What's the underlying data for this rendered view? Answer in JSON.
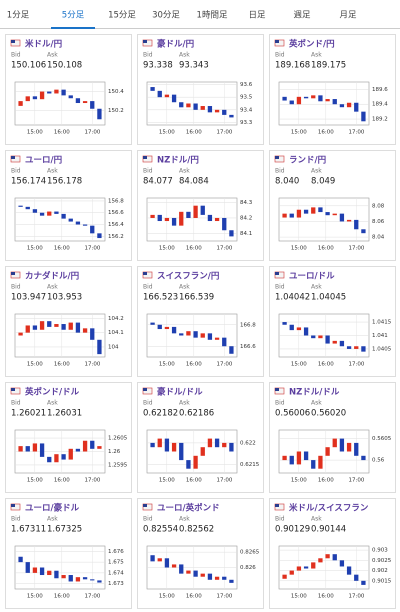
{
  "tabs": [
    "1分足",
    "5分足",
    "15分足",
    "30分足",
    "1時間足",
    "日足",
    "週足",
    "月足"
  ],
  "active_tab": 1,
  "bid_label": "Bid",
  "ask_label": "Ask",
  "time_labels": [
    "15:00",
    "16:00",
    "17:00"
  ],
  "cards": [
    {
      "title": "米ドル/円",
      "bid": "150.106",
      "ask": "150.108",
      "ylim": [
        150.05,
        150.5
      ],
      "yticks": [
        150.2,
        150.4
      ],
      "candles": [
        [
          150.25,
          150.3
        ],
        [
          150.3,
          150.35
        ],
        [
          150.35,
          150.32
        ],
        [
          150.32,
          150.4
        ],
        [
          150.4,
          150.38
        ],
        [
          150.38,
          150.42
        ],
        [
          150.42,
          150.36
        ],
        [
          150.36,
          150.33
        ],
        [
          150.33,
          150.28
        ],
        [
          150.28,
          150.3
        ],
        [
          150.3,
          150.22
        ],
        [
          150.22,
          150.11
        ]
      ]
    },
    {
      "title": "豪ドル/円",
      "bid": "93.338",
      "ask": "93.343",
      "ylim": [
        93.28,
        93.62
      ],
      "yticks": [
        93.3,
        93.4,
        93.5,
        93.6
      ],
      "candles": [
        [
          93.58,
          93.55
        ],
        [
          93.55,
          93.5
        ],
        [
          93.5,
          93.52
        ],
        [
          93.52,
          93.46
        ],
        [
          93.46,
          93.42
        ],
        [
          93.42,
          93.45
        ],
        [
          93.45,
          93.4
        ],
        [
          93.4,
          93.43
        ],
        [
          93.43,
          93.38
        ],
        [
          93.38,
          93.4
        ],
        [
          93.4,
          93.36
        ],
        [
          93.36,
          93.34
        ]
      ]
    },
    {
      "title": "英ポンド/円",
      "bid": "189.168",
      "ask": "189.175",
      "ylim": [
        189.12,
        189.7
      ],
      "yticks": [
        189.2,
        189.4,
        189.6
      ],
      "candles": [
        [
          189.5,
          189.45
        ],
        [
          189.45,
          189.4
        ],
        [
          189.4,
          189.5
        ],
        [
          189.5,
          189.48
        ],
        [
          189.48,
          189.52
        ],
        [
          189.52,
          189.44
        ],
        [
          189.44,
          189.47
        ],
        [
          189.47,
          189.4
        ],
        [
          189.4,
          189.36
        ],
        [
          189.36,
          189.42
        ],
        [
          189.42,
          189.3
        ],
        [
          189.3,
          189.17
        ]
      ]
    },
    {
      "title": "ユーロ/円",
      "bid": "156.174",
      "ask": "156.178",
      "ylim": [
        156.12,
        156.85
      ],
      "yticks": [
        156.2,
        156.4,
        156.6,
        156.8
      ],
      "candles": [
        [
          156.72,
          156.7
        ],
        [
          156.7,
          156.66
        ],
        [
          156.66,
          156.6
        ],
        [
          156.6,
          156.55
        ],
        [
          156.55,
          156.62
        ],
        [
          156.62,
          156.58
        ],
        [
          156.58,
          156.5
        ],
        [
          156.5,
          156.45
        ],
        [
          156.45,
          156.4
        ],
        [
          156.4,
          156.38
        ],
        [
          156.38,
          156.25
        ],
        [
          156.25,
          156.17
        ]
      ]
    },
    {
      "title": "NZドル/円",
      "bid": "84.077",
      "ask": "84.084",
      "ylim": [
        84.05,
        84.33
      ],
      "yticks": [
        84.1,
        84.2,
        84.3
      ],
      "candles": [
        [
          84.2,
          84.22
        ],
        [
          84.22,
          84.18
        ],
        [
          84.18,
          84.2
        ],
        [
          84.2,
          84.15
        ],
        [
          84.15,
          84.24
        ],
        [
          84.24,
          84.2
        ],
        [
          84.2,
          84.28
        ],
        [
          84.28,
          84.22
        ],
        [
          84.22,
          84.18
        ],
        [
          84.18,
          84.2
        ],
        [
          84.2,
          84.12
        ],
        [
          84.12,
          84.08
        ]
      ]
    },
    {
      "title": "ランド/円",
      "bid": "8.040",
      "ask": "8.049",
      "ylim": [
        8.035,
        8.09
      ],
      "yticks": [
        8.04,
        8.06,
        8.08
      ],
      "candles": [
        [
          8.065,
          8.07
        ],
        [
          8.07,
          8.065
        ],
        [
          8.065,
          8.075
        ],
        [
          8.075,
          8.07
        ],
        [
          8.07,
          8.078
        ],
        [
          8.078,
          8.072
        ],
        [
          8.072,
          8.068
        ],
        [
          8.068,
          8.07
        ],
        [
          8.07,
          8.06
        ],
        [
          8.06,
          8.062
        ],
        [
          8.062,
          8.05
        ],
        [
          8.05,
          8.045
        ]
      ]
    },
    {
      "title": "カナダドル/円",
      "bid": "103.947",
      "ask": "103.953",
      "ylim": [
        103.93,
        104.23
      ],
      "yticks": [
        104,
        104.1,
        104.2
      ],
      "candles": [
        [
          104.08,
          104.1
        ],
        [
          104.1,
          104.15
        ],
        [
          104.15,
          104.12
        ],
        [
          104.12,
          104.18
        ],
        [
          104.18,
          104.14
        ],
        [
          104.14,
          104.16
        ],
        [
          104.16,
          104.12
        ],
        [
          104.12,
          104.17
        ],
        [
          104.17,
          104.1
        ],
        [
          104.1,
          104.13
        ],
        [
          104.13,
          104.05
        ],
        [
          104.05,
          103.95
        ]
      ]
    },
    {
      "title": "スイスフラン/円",
      "bid": "166.523",
      "ask": "166.539",
      "ylim": [
        166.5,
        166.9
      ],
      "yticks": [
        166.6,
        166.8
      ],
      "candles": [
        [
          166.82,
          166.8
        ],
        [
          166.8,
          166.76
        ],
        [
          166.76,
          166.78
        ],
        [
          166.78,
          166.72
        ],
        [
          166.72,
          166.7
        ],
        [
          166.7,
          166.74
        ],
        [
          166.74,
          166.68
        ],
        [
          166.68,
          166.72
        ],
        [
          166.72,
          166.66
        ],
        [
          166.66,
          166.68
        ],
        [
          166.68,
          166.6
        ],
        [
          166.6,
          166.53
        ]
      ]
    },
    {
      "title": "ユーロ/ドル",
      "bid": "1.04042",
      "ask": "1.04045",
      "ylim": [
        1.0402,
        1.0418
      ],
      "yticks": [
        1.0405,
        1.041,
        1.0415
      ],
      "candles": [
        [
          1.0415,
          1.0414
        ],
        [
          1.0414,
          1.0412
        ],
        [
          1.0412,
          1.0413
        ],
        [
          1.0413,
          1.041
        ],
        [
          1.041,
          1.0409
        ],
        [
          1.0409,
          1.041
        ],
        [
          1.041,
          1.0407
        ],
        [
          1.0407,
          1.0408
        ],
        [
          1.0408,
          1.0406
        ],
        [
          1.0406,
          1.0405
        ],
        [
          1.0405,
          1.0406
        ],
        [
          1.0406,
          1.0404
        ]
      ]
    },
    {
      "title": "英ポンド/ドル",
      "bid": "1.26021",
      "ask": "1.26031",
      "ylim": [
        1.2592,
        1.2608
      ],
      "yticks": [
        1.2595,
        1.26,
        1.2605
      ],
      "candles": [
        [
          1.26,
          1.2602
        ],
        [
          1.2602,
          1.26
        ],
        [
          1.26,
          1.2603
        ],
        [
          1.2603,
          1.2598
        ],
        [
          1.2598,
          1.2596
        ],
        [
          1.2596,
          1.2599
        ],
        [
          1.2599,
          1.2597
        ],
        [
          1.2597,
          1.2601
        ],
        [
          1.2601,
          1.26
        ],
        [
          1.26,
          1.2604
        ],
        [
          1.2604,
          1.2601
        ],
        [
          1.2601,
          1.2602
        ]
      ]
    },
    {
      "title": "豪ドル/ドル",
      "bid": "0.62182",
      "ask": "0.62186",
      "ylim": [
        0.6213,
        0.6223
      ],
      "yticks": [
        0.6215,
        0.622
      ],
      "candles": [
        [
          0.622,
          0.6219
        ],
        [
          0.6219,
          0.6221
        ],
        [
          0.6221,
          0.6218
        ],
        [
          0.6218,
          0.622
        ],
        [
          0.622,
          0.6216
        ],
        [
          0.6216,
          0.6214
        ],
        [
          0.6214,
          0.6217
        ],
        [
          0.6217,
          0.6219
        ],
        [
          0.6219,
          0.6221
        ],
        [
          0.6221,
          0.6219
        ],
        [
          0.6219,
          0.622
        ],
        [
          0.622,
          0.6218
        ]
      ]
    },
    {
      "title": "NZドル/ドル",
      "bid": "0.56006",
      "ask": "0.56020",
      "ylim": [
        0.5597,
        0.5607
      ],
      "yticks": [
        0.56,
        0.5605
      ],
      "candles": [
        [
          0.56,
          0.5601
        ],
        [
          0.5601,
          0.5599
        ],
        [
          0.5599,
          0.5602
        ],
        [
          0.5602,
          0.56
        ],
        [
          0.56,
          0.5598
        ],
        [
          0.5598,
          0.5601
        ],
        [
          0.5601,
          0.5603
        ],
        [
          0.5603,
          0.5605
        ],
        [
          0.5605,
          0.5602
        ],
        [
          0.5602,
          0.5604
        ],
        [
          0.5604,
          0.5601
        ],
        [
          0.5601,
          0.56
        ]
      ]
    },
    {
      "title": "ユーロ/豪ドル",
      "bid": "1.67311",
      "ask": "1.67325",
      "ylim": [
        1.6725,
        1.6765
      ],
      "yticks": [
        1.673,
        1.674,
        1.675,
        1.676
      ],
      "candles": [
        [
          1.6755,
          1.675
        ],
        [
          1.675,
          1.674
        ],
        [
          1.674,
          1.6745
        ],
        [
          1.6745,
          1.6738
        ],
        [
          1.6738,
          1.6742
        ],
        [
          1.6742,
          1.6735
        ],
        [
          1.6735,
          1.6738
        ],
        [
          1.6738,
          1.6732
        ],
        [
          1.6732,
          1.6736
        ],
        [
          1.6736,
          1.6734
        ],
        [
          1.6734,
          1.6733
        ],
        [
          1.6733,
          1.6731
        ]
      ]
    },
    {
      "title": "ユーロ/英ポンド",
      "bid": "0.82554",
      "ask": "0.82562",
      "ylim": [
        0.8253,
        0.8267
      ],
      "yticks": [
        0.826,
        0.8265
      ],
      "candles": [
        [
          0.8264,
          0.8262
        ],
        [
          0.8262,
          0.8263
        ],
        [
          0.8263,
          0.826
        ],
        [
          0.826,
          0.8261
        ],
        [
          0.8261,
          0.8258
        ],
        [
          0.8258,
          0.8259
        ],
        [
          0.8259,
          0.8257
        ],
        [
          0.8257,
          0.8258
        ],
        [
          0.8258,
          0.8256
        ],
        [
          0.8256,
          0.8257
        ],
        [
          0.8257,
          0.8256
        ],
        [
          0.8256,
          0.8255
        ]
      ]
    },
    {
      "title": "米ドル/スイスフラン",
      "bid": "0.90129",
      "ask": "0.90144",
      "ylim": [
        0.9011,
        0.9032
      ],
      "yticks": [
        0.9015,
        0.902,
        0.9025,
        0.903
      ],
      "candles": [
        [
          0.9016,
          0.9018
        ],
        [
          0.9018,
          0.902
        ],
        [
          0.902,
          0.9022
        ],
        [
          0.9022,
          0.9021
        ],
        [
          0.9021,
          0.9024
        ],
        [
          0.9024,
          0.9026
        ],
        [
          0.9026,
          0.9028
        ],
        [
          0.9028,
          0.9025
        ],
        [
          0.9025,
          0.9022
        ],
        [
          0.9022,
          0.9018
        ],
        [
          0.9018,
          0.9015
        ],
        [
          0.9015,
          0.9013
        ]
      ]
    }
  ]
}
